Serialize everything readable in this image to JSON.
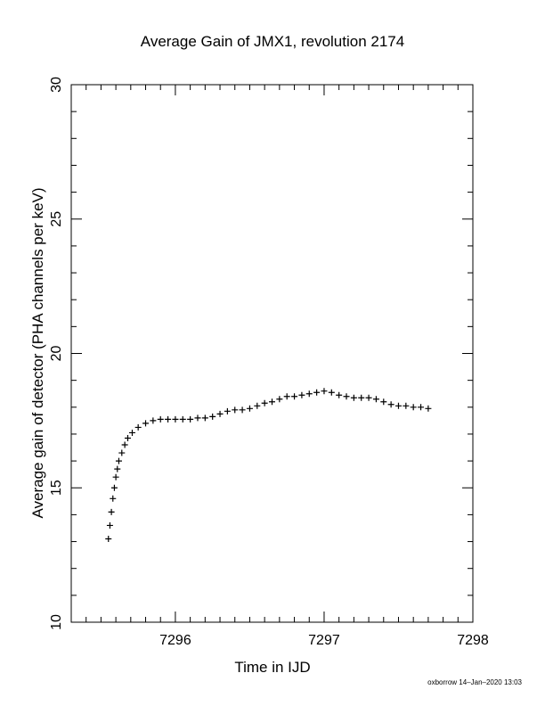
{
  "chart_data": {
    "type": "scatter",
    "title": "Average Gain of JMX1, revolution 2174",
    "xlabel": "Time in IJD",
    "ylabel": "Average gain of detector (PHA channels per keV)",
    "xlim": [
      7295.3,
      7298
    ],
    "ylim": [
      10,
      30
    ],
    "x_ticks": [
      7296,
      7297,
      7298
    ],
    "x_tick_labels": [
      "7296",
      "7297",
      "7298"
    ],
    "y_ticks": [
      10,
      15,
      20,
      25,
      30
    ],
    "y_tick_labels": [
      "10",
      "15",
      "20",
      "25",
      "30"
    ],
    "marker": "+",
    "marker_color": "#000000",
    "grid": false,
    "series": [
      {
        "x": [
          7295.55,
          7295.56,
          7295.57,
          7295.58,
          7295.59,
          7295.6,
          7295.61,
          7295.62,
          7295.64,
          7295.66,
          7295.68,
          7295.71,
          7295.75,
          7295.8,
          7295.85,
          7295.9,
          7295.95,
          7296.0,
          7296.05,
          7296.1,
          7296.15,
          7296.2,
          7296.25,
          7296.3,
          7296.35,
          7296.4,
          7296.45,
          7296.5,
          7296.55,
          7296.6,
          7296.65,
          7296.7,
          7296.75,
          7296.8,
          7296.85,
          7296.9,
          7296.95,
          7297.0,
          7297.05,
          7297.1,
          7297.15,
          7297.2,
          7297.25,
          7297.3,
          7297.35,
          7297.4,
          7297.45,
          7297.5,
          7297.55,
          7297.6,
          7297.65,
          7297.7
        ],
        "y": [
          13.1,
          13.6,
          14.1,
          14.6,
          15.0,
          15.4,
          15.7,
          16.0,
          16.3,
          16.6,
          16.85,
          17.05,
          17.25,
          17.4,
          17.5,
          17.55,
          17.55,
          17.55,
          17.55,
          17.55,
          17.6,
          17.6,
          17.65,
          17.75,
          17.85,
          17.9,
          17.9,
          17.95,
          18.05,
          18.15,
          18.2,
          18.3,
          18.4,
          18.4,
          18.45,
          18.5,
          18.55,
          18.6,
          18.55,
          18.45,
          18.4,
          18.35,
          18.35,
          18.35,
          18.3,
          18.2,
          18.1,
          18.05,
          18.05,
          18.0,
          18.0,
          17.95
        ]
      }
    ]
  },
  "footer_text": "oxborrow 14–Jan–2020 13:03"
}
